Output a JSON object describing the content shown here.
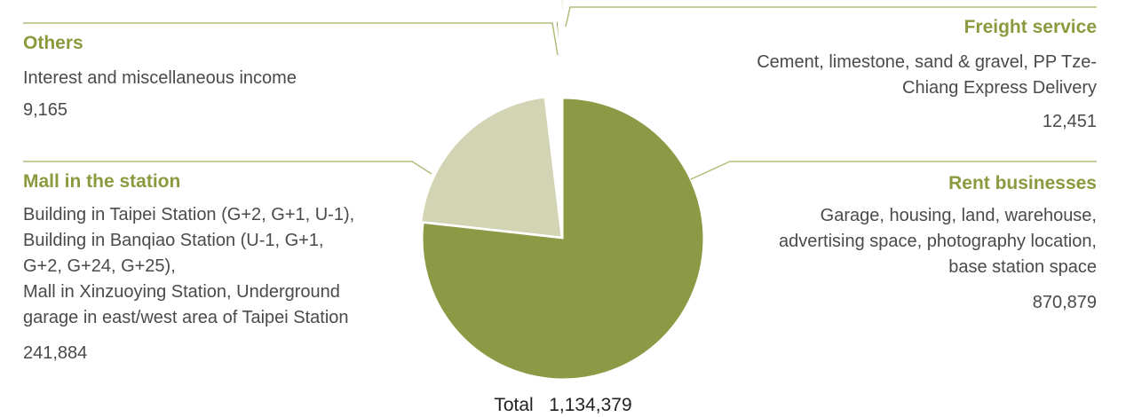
{
  "chart_data": {
    "type": "pie",
    "total_label": "Total",
    "total_value": "1,134,379",
    "slices": [
      {
        "name": "Rent businesses",
        "description": "Garage, housing, land, warehouse, advertising space, photography location, base station space",
        "value": 870879,
        "value_text": "870,879",
        "color": "#8c9a45"
      },
      {
        "name": "Mall in the station",
        "description": "Building in Taipei Station (G+2, G+1, U-1), Building in Banqiao Station (U-1, G+1, G+2, G+24, G+25), Mall in Xinzuoying Station, Underground garage in east/west area of Taipei Station",
        "value": 241884,
        "value_text": "241,884",
        "color": "#d3d4b3"
      },
      {
        "name": "Others",
        "description": "Interest and miscellaneous income",
        "value": 9165,
        "value_text": "9,165",
        "color": "#8c9a45"
      },
      {
        "name": "Freight service",
        "description": "Cement, limestone, sand & gravel, PP Tze-Chiang Express Delivery",
        "value": 12451,
        "value_text": "12,451",
        "color": "#e3e3cc"
      }
    ],
    "colors": {
      "heading": "#8c9a3f",
      "leader_line": "#b3bb7a"
    }
  },
  "labels": {
    "others": {
      "heading": "Others",
      "desc_lines": [
        "Interest and miscellaneous income"
      ],
      "value": "9,165"
    },
    "mall": {
      "heading": "Mall in the station",
      "desc_lines": [
        "Building in Taipei Station (G+2, G+1, U-1),",
        "Building in Banqiao Station (U-1, G+1,",
        "G+2, G+24, G+25),",
        "Mall in Xinzuoying Station, Underground",
        "garage in east/west area of Taipei Station"
      ],
      "value": "241,884"
    },
    "freight": {
      "heading": "Freight service",
      "desc_lines": [
        "Cement, limestone, sand & gravel, PP Tze-",
        "Chiang Express Delivery"
      ],
      "value": "12,451"
    },
    "rent": {
      "heading": "Rent businesses",
      "desc_lines": [
        "Garage, housing, land, warehouse,",
        "advertising space, photography location,",
        "base station space"
      ],
      "value": "870,879"
    }
  }
}
